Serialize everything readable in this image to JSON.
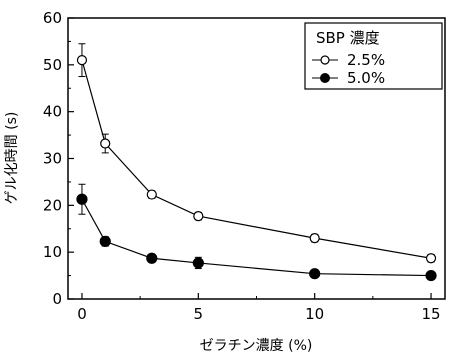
{
  "chart_data": {
    "type": "scatter",
    "xlabel": "ゼラチン濃度 (%)",
    "ylabel": "ゲル化時間 (s)",
    "xlim": [
      -0.6,
      15.6
    ],
    "ylim": [
      0,
      60
    ],
    "xticks": [
      0,
      5,
      10,
      15
    ],
    "yticks": [
      0,
      10,
      20,
      30,
      40,
      50,
      60
    ],
    "legend": {
      "title": "SBP 濃度",
      "position": "top-right"
    },
    "series": [
      {
        "name": "2.5%",
        "marker": "open-circle",
        "x": [
          0,
          1,
          3,
          5,
          10,
          15
        ],
        "y": [
          51.0,
          33.2,
          22.3,
          17.7,
          13.0,
          8.7
        ],
        "err": [
          3.5,
          2.0,
          0.8,
          0.8,
          0.8,
          0.8
        ]
      },
      {
        "name": "5.0%",
        "marker": "filled-circle",
        "x": [
          0,
          1,
          3,
          5,
          10,
          15
        ],
        "y": [
          21.3,
          12.3,
          8.7,
          7.7,
          5.4,
          5.0
        ],
        "err": [
          3.2,
          1.0,
          0.5,
          1.2,
          0.5,
          0.5
        ]
      }
    ]
  }
}
